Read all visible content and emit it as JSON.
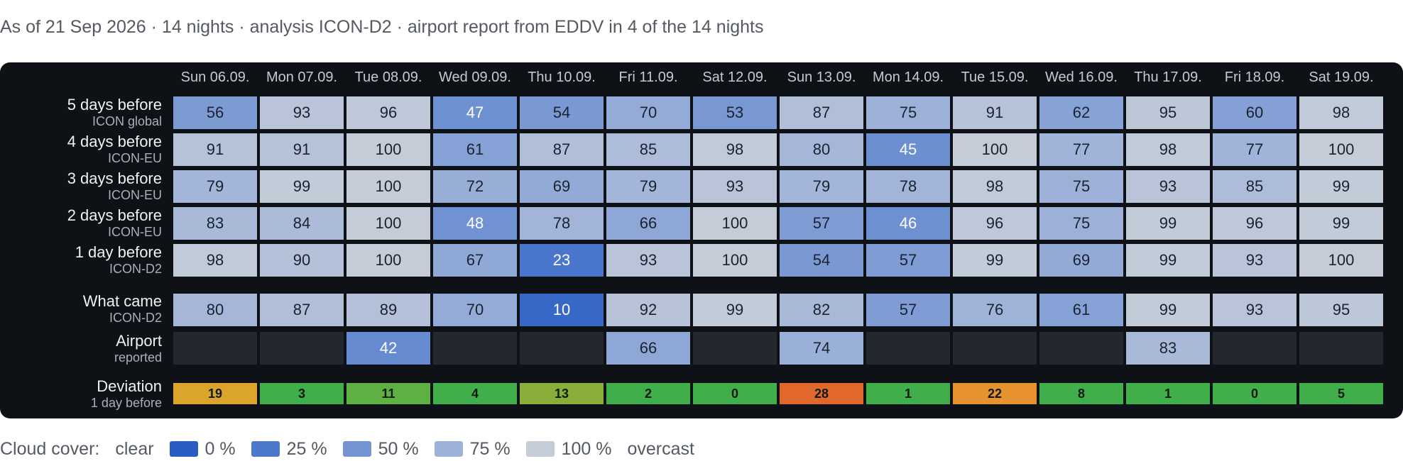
{
  "caption": "As of 21 Sep 2026 · 14 nights · analysis ICON-D2 · airport report from EDDV in 4 of the 14 nights",
  "columns": [
    "Sun 06.09.",
    "Mon 07.09.",
    "Tue 08.09.",
    "Wed 09.09.",
    "Thu 10.09.",
    "Fri 11.09.",
    "Sat 12.09.",
    "Sun 13.09.",
    "Mon 14.09.",
    "Tue 15.09.",
    "Wed 16.09.",
    "Thu 17.09.",
    "Fri 18.09.",
    "Sat 19.09."
  ],
  "forecast_rows": [
    {
      "label": "5 days before",
      "model": "ICON global",
      "values": [
        56,
        93,
        96,
        47,
        54,
        70,
        53,
        87,
        75,
        91,
        62,
        95,
        60,
        98
      ]
    },
    {
      "label": "4 days before",
      "model": "ICON-EU",
      "values": [
        91,
        91,
        100,
        61,
        87,
        85,
        98,
        80,
        45,
        100,
        77,
        98,
        77,
        100
      ]
    },
    {
      "label": "3 days before",
      "model": "ICON-EU",
      "values": [
        79,
        99,
        100,
        72,
        69,
        79,
        93,
        79,
        78,
        98,
        75,
        93,
        85,
        99
      ]
    },
    {
      "label": "2 days before",
      "model": "ICON-EU",
      "values": [
        83,
        84,
        100,
        48,
        78,
        66,
        100,
        57,
        46,
        96,
        75,
        99,
        96,
        99
      ]
    },
    {
      "label": "1 day before",
      "model": "ICON-D2",
      "values": [
        98,
        90,
        100,
        67,
        23,
        93,
        100,
        54,
        57,
        99,
        69,
        99,
        93,
        100
      ]
    }
  ],
  "actual_row": {
    "label": "What came",
    "model": "ICON-D2",
    "values": [
      80,
      87,
      89,
      70,
      10,
      92,
      99,
      82,
      57,
      76,
      61,
      99,
      93,
      95
    ]
  },
  "airport_row": {
    "label": "Airport",
    "sub": "reported",
    "values": [
      null,
      null,
      42,
      null,
      null,
      66,
      null,
      74,
      null,
      null,
      null,
      83,
      null,
      null
    ]
  },
  "deviation_row": {
    "label": "Deviation",
    "sub": "1 day before",
    "values": [
      19,
      3,
      11,
      4,
      13,
      2,
      0,
      28,
      1,
      22,
      8,
      1,
      0,
      5
    ],
    "colors": [
      "#dba52c",
      "#3fae4b",
      "#5fb042",
      "#3fae4b",
      "#8aae3a",
      "#3fae4b",
      "#3fae4b",
      "#e0682c",
      "#3fae4b",
      "#e5922f",
      "#3fae4b",
      "#3fae4b",
      "#3fae4b",
      "#3fae4b"
    ]
  },
  "legend": {
    "prefix": "Cloud cover:",
    "left_word": "clear",
    "items": [
      {
        "label": "0 %",
        "color": "#2a5cc4"
      },
      {
        "label": "25 %",
        "color": "#4d79cc"
      },
      {
        "label": "50 %",
        "color": "#7394d2"
      },
      {
        "label": "75 %",
        "color": "#9db1d8"
      },
      {
        "label": "100 %",
        "color": "#c4ccd8"
      }
    ],
    "right_word": "overcast"
  }
}
